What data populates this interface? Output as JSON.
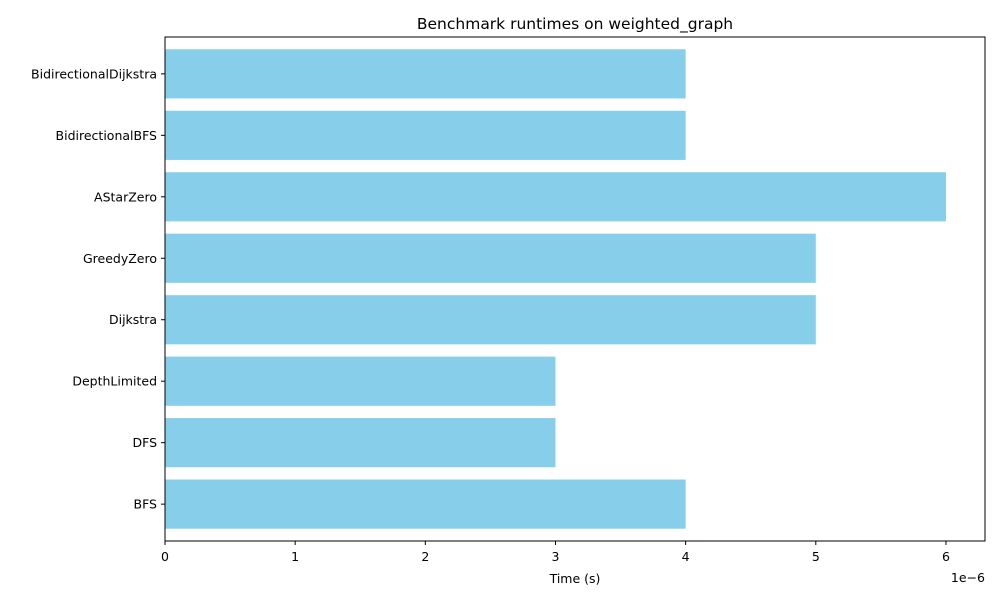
{
  "chart_data": {
    "type": "bar",
    "orientation": "horizontal",
    "title": "Benchmark runtimes on weighted_graph",
    "xlabel": "Time (s)",
    "ylabel": "",
    "x_offset_label": "1e−6",
    "x_scale": 1e-06,
    "xlim": [
      0,
      6.3
    ],
    "x_ticks": [
      0,
      1,
      2,
      3,
      4,
      5,
      6
    ],
    "x_tick_labels": [
      "0",
      "1",
      "2",
      "3",
      "4",
      "5",
      "6"
    ],
    "categories": [
      "BFS",
      "DFS",
      "DepthLimited",
      "Dijkstra",
      "GreedyZero",
      "AStarZero",
      "BidirectionalBFS",
      "BidirectionalDijkstra"
    ],
    "values": [
      4e-06,
      3e-06,
      3e-06,
      5e-06,
      5e-06,
      6e-06,
      4e-06,
      4e-06
    ],
    "bar_color": "#87ceeb",
    "grid": false,
    "legend": "none"
  }
}
